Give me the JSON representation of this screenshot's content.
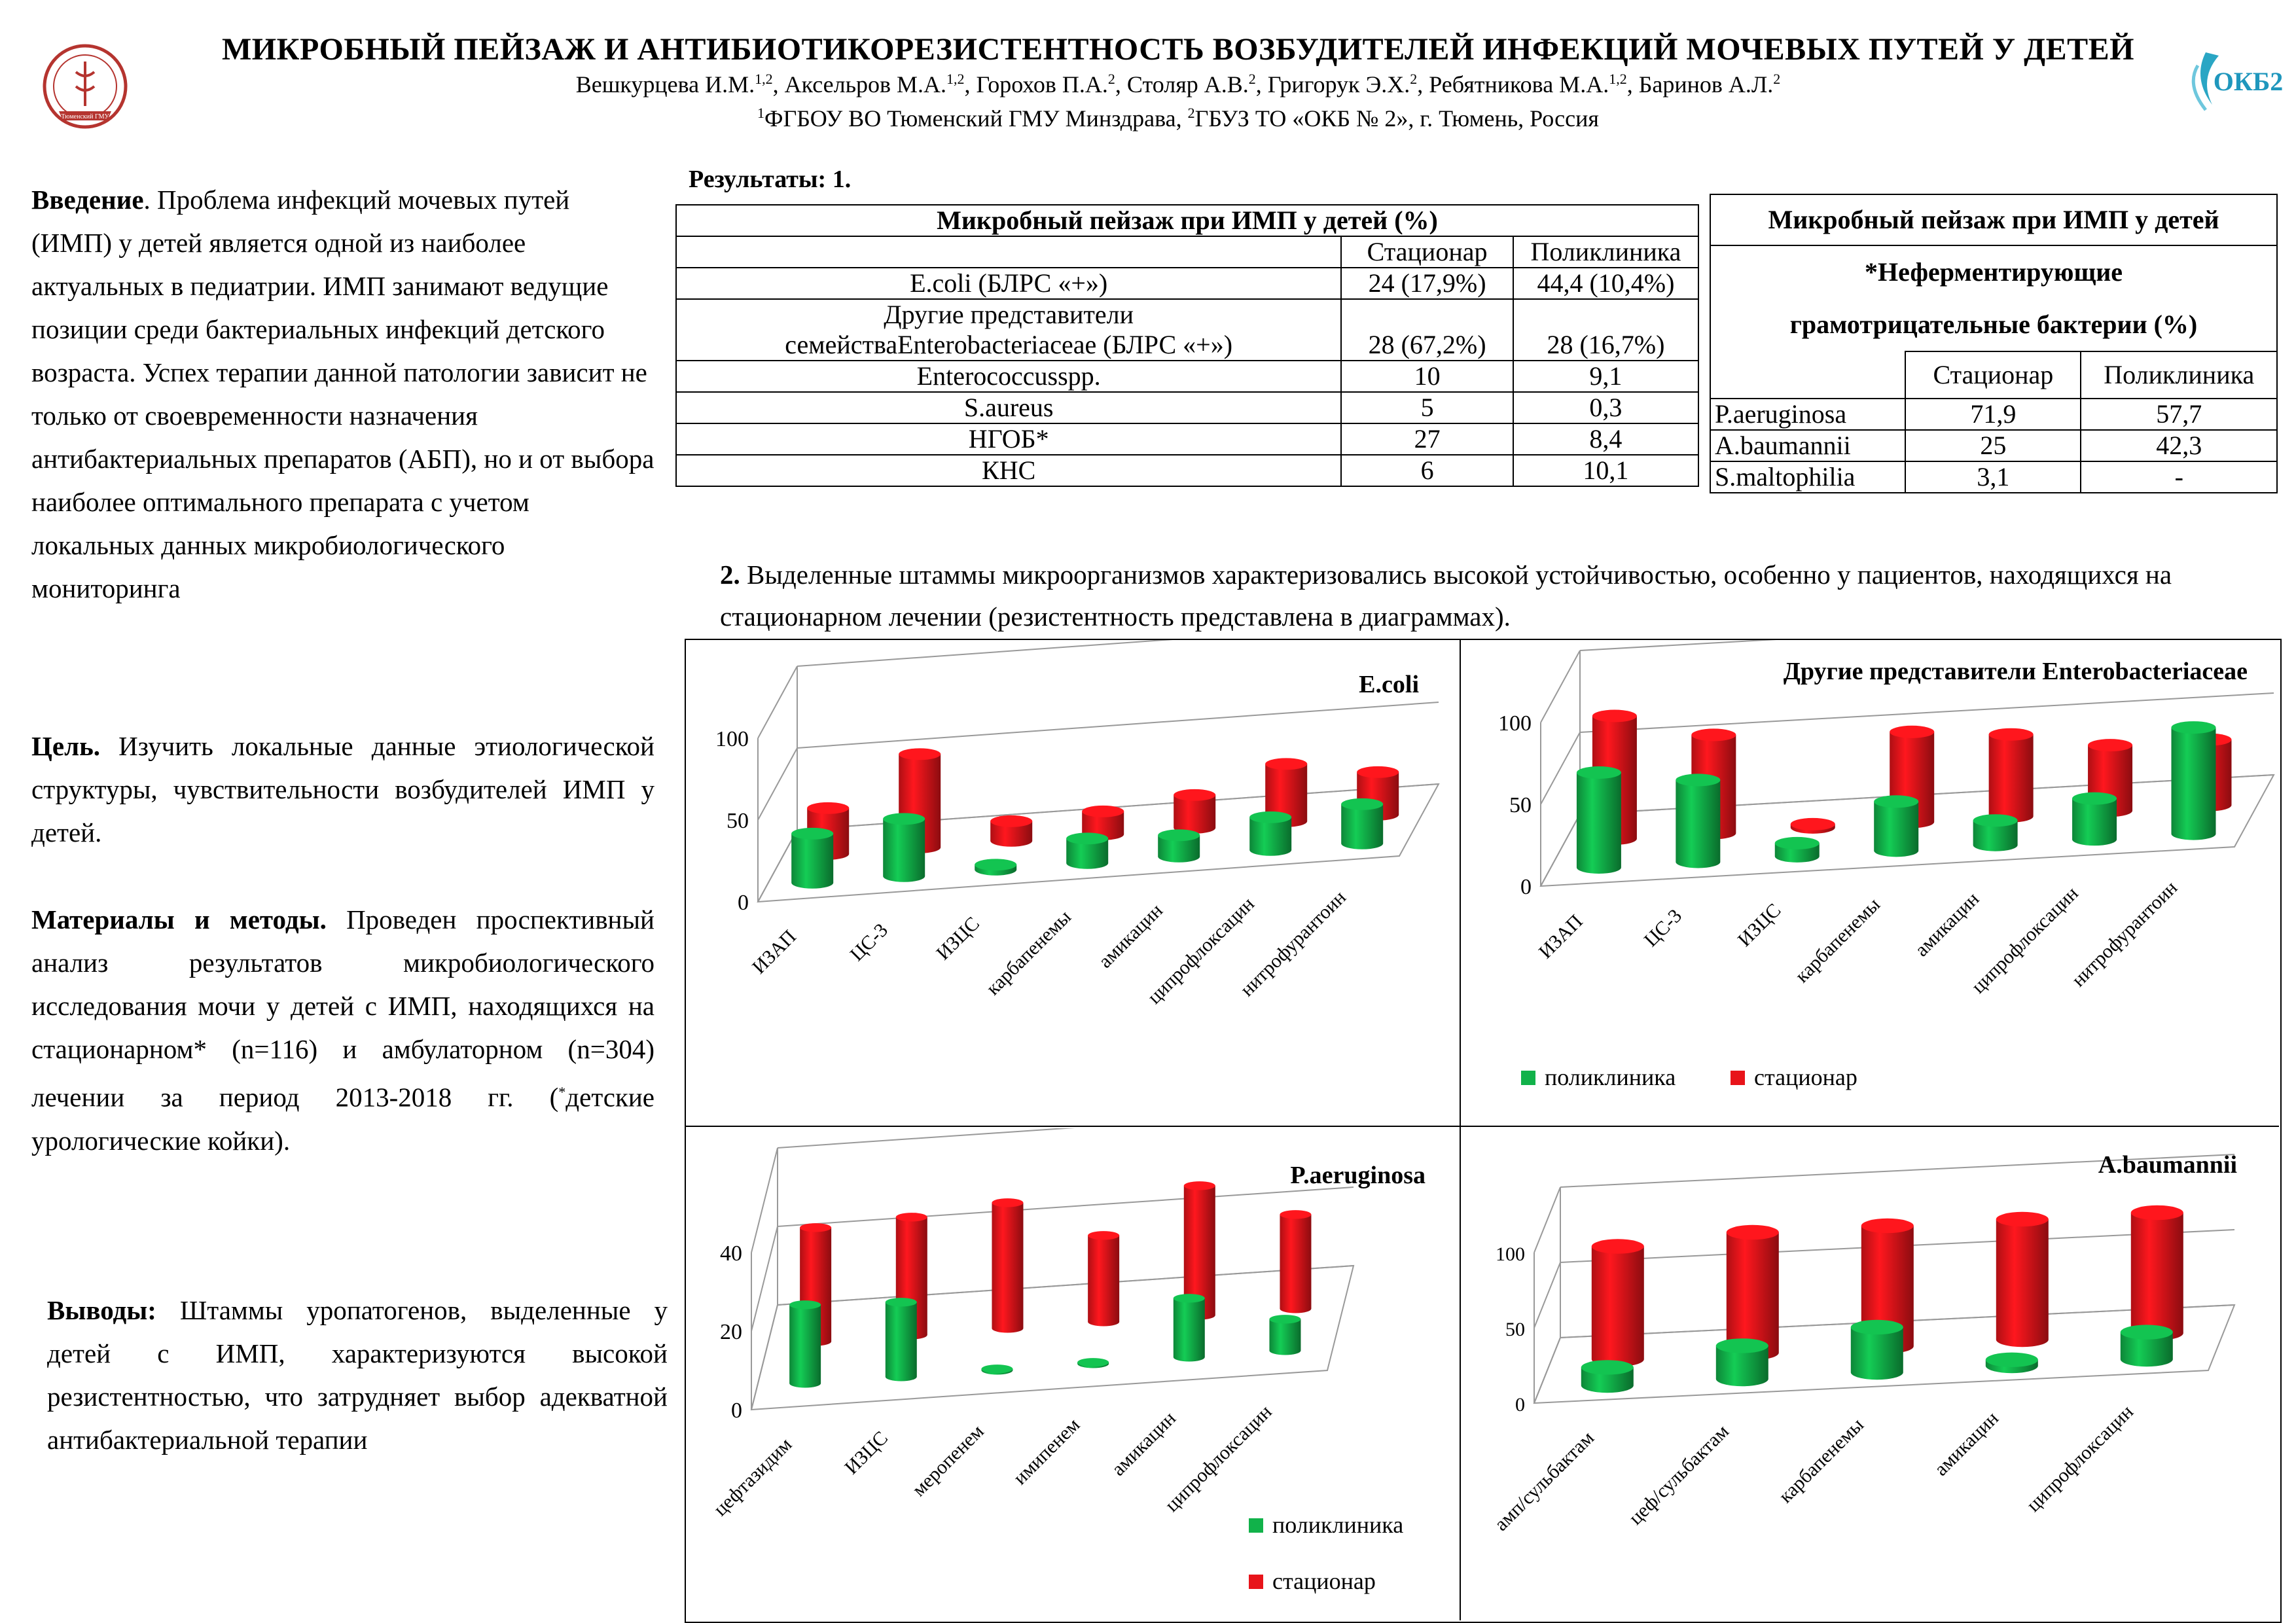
{
  "header": {
    "title": "МИКРОБНЫЙ ПЕЙЗАЖ И АНТИБИОТИКОРЕЗИСТЕНТНОСТЬ ВОЗБУДИТЕЛЕЙ ИНФЕКЦИЙ МОЧЕВЫХ ПУТЕЙ У ДЕТЕЙ",
    "authors": [
      {
        "name": "Вешкурцева И.М.",
        "sup": "1,2",
        "sep": ", "
      },
      {
        "name": "Аксельров М.А.",
        "sup": "1,2",
        "sep": ", "
      },
      {
        "name": "Горохов П.А.",
        "sup": "2",
        "sep": ", "
      },
      {
        "name": "Столяр А.В.",
        "sup": "2",
        "sep": ", "
      },
      {
        "name": "Григорук Э.Х.",
        "sup": "2",
        "sep": ", "
      },
      {
        "name": "Ребятникова М.А.",
        "sup": "1,2",
        "sep": ", "
      },
      {
        "name": "Баринов А.Л.",
        "sup": "2",
        "sep": ""
      }
    ],
    "affil_sup1": "1",
    "affil_part1": "ФГБОУ ВО Тюменский ГМУ Минздрава, ",
    "affil_sup2": "2",
    "affil_part2": "ГБУЗ ТО «ОКБ № 2», г. Тюмень, Россия",
    "logo_right_text": "ОКБ2",
    "logo_left_text": "Тюменский ГМУ",
    "logo_left_icon": "university-seal-icon",
    "logo_right_icon": "hospital-logo-icon"
  },
  "intro": {
    "heading": "Введение",
    "text": ". Проблема инфекций мочевых путей (ИМП) у детей является одной из наиболее актуальных в педиатрии. ИМП занимают ведущие позиции среди бактериальных инфекций детского возраста.  Успех терапии  данной патологии зависит не только от своевременности назначения антибактериальных препаратов (АБП), но  и от выбора  наиболее оптимального препарата с учетом локальных данных микробиологического мониторинга"
  },
  "goal": {
    "heading": "Цель.",
    "text": " Изучить локальные данные этиологической структуры, чувствительности возбудителей ИМП у детей."
  },
  "methods": {
    "heading": "Материалы и методы.",
    "text": " Проведен проспективный анализ результатов микробиологического исследования  мочи у детей с ИМП, находящихся на стационарном* (n=116) и амбулаторном (n=304) лечении  за период 2013-2018 гг. (",
    "star": "*",
    "text_end": "детские урологические койки)."
  },
  "conclusions": {
    "heading": "Выводы:",
    "text": " Штаммы уропатогенов, выделенные у детей с ИМП, характеризуются высокой резистентностью, что затрудняет выбор адекватной антибактериальной терапии"
  },
  "results": {
    "label": "Результаты: 1.",
    "table1": {
      "title": "Микробный пейзаж при ИМП у детей (%)",
      "col_hosp": "Стационар",
      "col_clinic": "Поликлиника",
      "rows": [
        {
          "name": "E.coli (БЛРС «+»)",
          "hosp": "24 (17,9%)",
          "clinic": "44,4 (10,4%)"
        },
        {
          "name": "Другие представители",
          "name2": "семействаEnterobacteriaceae (БЛРС «+»)",
          "hosp": "28 (67,2%)",
          "clinic": "28 (16,7%)"
        },
        {
          "name": "Enterococcusspp.",
          "hosp": "10",
          "clinic": "9,1"
        },
        {
          "name": "S.aureus",
          "hosp": "5",
          "clinic": "0,3"
        },
        {
          "name": "НГОБ*",
          "hosp": "27",
          "clinic": "8,4"
        },
        {
          "name": "КНС",
          "hosp": "6",
          "clinic": "10,1"
        }
      ]
    },
    "table2": {
      "title1": "Микробный пейзаж при ИМП у детей",
      "title2": "*Неферментирующие",
      "title3": "грамотрицательные бактерии (%)",
      "col_hosp": "Стационар",
      "col_clinic": "Поликлиника",
      "rows": [
        {
          "name": "P.aeruginosa",
          "hosp": "71,9",
          "clinic": "57,7"
        },
        {
          "name": "A.baumannii",
          "hosp": "25",
          "clinic": "42,3"
        },
        {
          "name": "S.maltophilia",
          "hosp": "3,1",
          "clinic": "-"
        }
      ]
    },
    "section2_num": "2.",
    "section2_text": " Выделенные штаммы микроорганизмов характеризовались высокой устойчивостью, особенно у пациентов, находящихся на стационарном лечении (резистентность представлена в диаграммах)."
  },
  "colors": {
    "clinic": "#11b24a",
    "hosp": "#e8141a"
  },
  "legend": {
    "clinic": "поликлиника",
    "hosp": "стационар"
  },
  "chart_data": [
    {
      "type": "bar",
      "title": "E.coli",
      "categories": [
        "ИЗАП",
        "ЦС-3",
        "ИЗЦС",
        "карбапенемы",
        "амикацин",
        "ципрофлоксацин",
        "нитрофурантоин"
      ],
      "series": [
        {
          "name": "поликлиника",
          "values": [
            30,
            35,
            3,
            15,
            13,
            20,
            24
          ]
        },
        {
          "name": "стационар",
          "values": [
            28,
            57,
            12,
            14,
            20,
            35,
            26
          ]
        }
      ],
      "ylim": [
        0,
        100
      ],
      "yticks": [
        0,
        50,
        100
      ]
    },
    {
      "type": "bar",
      "title": "Другие представители Enterobacteriaceae",
      "categories": [
        "ИЗАП",
        "ЦС-3",
        "ИЗЦС",
        "карбапенемы",
        "амикацин",
        "ципрофлоксацин",
        "нитрофурантоин"
      ],
      "series": [
        {
          "name": "поликлиника",
          "values": [
            58,
            50,
            8,
            30,
            15,
            25,
            65
          ]
        },
        {
          "name": "стационар",
          "values": [
            75,
            60,
            2,
            55,
            50,
            40,
            40
          ]
        }
      ],
      "ylim": [
        0,
        100
      ],
      "yticks": [
        0,
        50,
        100
      ],
      "legend": "bottom"
    },
    {
      "type": "bar",
      "title": "P.aeruginosa",
      "categories": [
        "цефтазидим",
        "ИЗЦС",
        "меропенем",
        "имипенем",
        "амикацин",
        "ципрофлоксацин"
      ],
      "series": [
        {
          "name": "поликлиника",
          "values": [
            20,
            19,
            0,
            0,
            15,
            8
          ]
        },
        {
          "name": "стационар",
          "values": [
            29,
            30,
            32,
            22,
            33,
            24
          ]
        }
      ],
      "ylim": [
        0,
        40
      ],
      "yticks": [
        0,
        20,
        40
      ],
      "legend": "bottom-right"
    },
    {
      "type": "bar",
      "title": "A.baumannii",
      "categories": [
        "амп/сульбактам",
        "цеф/сульбактам",
        "карбапенемы",
        "амикацин",
        "ципрофлоксацин"
      ],
      "series": [
        {
          "name": "поликлиника",
          "values": [
            12,
            22,
            30,
            4,
            18
          ]
        },
        {
          "name": "стационар",
          "values": [
            75,
            80,
            80,
            80,
            80
          ]
        }
      ],
      "ylim": [
        0,
        100
      ],
      "yticks": [
        0,
        50,
        100
      ]
    }
  ]
}
